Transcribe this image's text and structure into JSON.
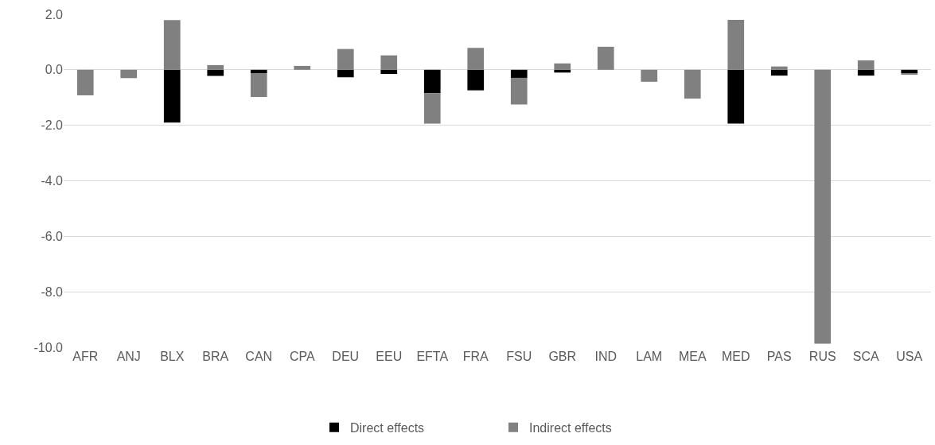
{
  "chart_data": {
    "type": "bar",
    "stacked": true,
    "categories": [
      "AFR",
      "ANJ",
      "BLX",
      "BRA",
      "CAN",
      "CPA",
      "DEU",
      "EEU",
      "EFTA",
      "FRA",
      "FSU",
      "GBR",
      "IND",
      "LAM",
      "MEA",
      "MED",
      "PAS",
      "RUS",
      "SCA",
      "USA"
    ],
    "series": [
      {
        "name": "Direct effects",
        "color": "#000000",
        "values": [
          0,
          0,
          -1.9,
          -0.22,
          -0.12,
          0,
          -0.27,
          -0.15,
          -0.84,
          -0.74,
          -0.29,
          -0.1,
          0,
          0,
          0,
          -1.94,
          -0.21,
          0,
          -0.21,
          -0.12
        ]
      },
      {
        "name": "Indirect effects",
        "color": "#808080",
        "values": [
          -0.92,
          -0.3,
          1.79,
          0.17,
          -0.86,
          0.14,
          0.75,
          0.52,
          -1.1,
          0.79,
          -0.96,
          0.23,
          0.83,
          -0.43,
          -1.04,
          1.8,
          0.12,
          -9.87,
          0.34,
          -0.06
        ]
      }
    ],
    "ylim": [
      -10,
      2
    ],
    "yticks": [
      {
        "value": 2,
        "label": "2.0"
      },
      {
        "value": 0,
        "label": "0.0"
      },
      {
        "value": -2,
        "label": "-2.0"
      },
      {
        "value": -4,
        "label": "-4.0"
      },
      {
        "value": -6,
        "label": "-6.0"
      },
      {
        "value": -8,
        "label": "-8.0"
      },
      {
        "value": -10,
        "label": "-10.0"
      }
    ],
    "grid": "y",
    "legend": "bottom"
  }
}
